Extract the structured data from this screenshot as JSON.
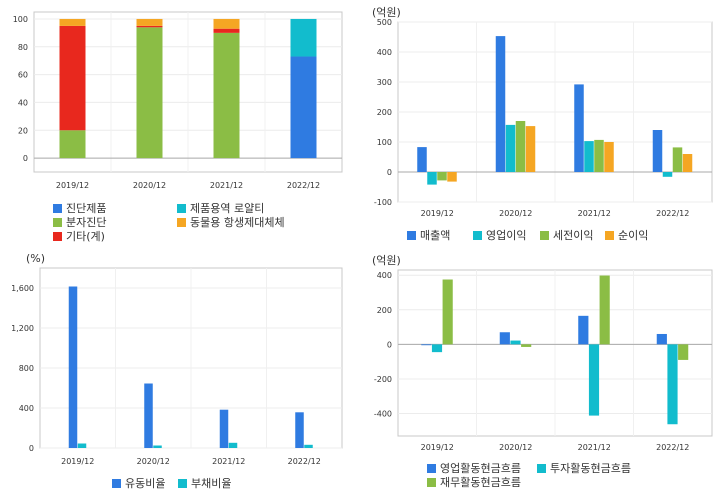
{
  "colors": {
    "blue": "#2f7be1",
    "cyan": "#12bccd",
    "green": "#8bbd45",
    "orange": "#f5a623",
    "red": "#e8281e"
  },
  "chart_data": [
    {
      "id": "c1",
      "type": "bar",
      "stacked": true,
      "categories": [
        "2019/12",
        "2020/12",
        "2021/12",
        "2022/12"
      ],
      "ylim": [
        -10,
        105
      ],
      "yticks": [
        0,
        20,
        40,
        60,
        80,
        100
      ],
      "ytick_labels": [
        "0",
        "20",
        "40",
        "60",
        "80",
        "100"
      ],
      "unit": "",
      "series": [
        {
          "name": "진단제품",
          "color": "blue",
          "values": [
            0,
            0,
            0,
            73
          ]
        },
        {
          "name": "분자진단",
          "color": "green",
          "values": [
            20,
            94,
            90,
            0
          ]
        },
        {
          "name": "기타(계)",
          "color": "red",
          "values": [
            75,
            1,
            3,
            0
          ]
        },
        {
          "name": "제품용역 로얄티",
          "color": "cyan",
          "values": [
            0,
            0,
            0,
            27
          ]
        },
        {
          "name": "동물용 항생제대체체",
          "color": "orange",
          "values": [
            5,
            5,
            7,
            0
          ]
        }
      ],
      "legend": [
        {
          "name": "진단제품",
          "color": "blue"
        },
        {
          "name": "제품용역 로얄티",
          "color": "cyan"
        },
        {
          "name": "분자진단",
          "color": "green"
        },
        {
          "name": "동물용 항생제대체체",
          "color": "orange"
        },
        {
          "name": "기타(계)",
          "color": "red"
        }
      ]
    },
    {
      "id": "c2",
      "type": "bar",
      "categories": [
        "2019/12",
        "2020/12",
        "2021/12",
        "2022/12"
      ],
      "ylim": [
        -100,
        500
      ],
      "yticks": [
        -100,
        0,
        100,
        200,
        300,
        400,
        500
      ],
      "ytick_labels": [
        "-100",
        "0",
        "100",
        "200",
        "300",
        "400",
        "500"
      ],
      "unit": "(억원)",
      "series": [
        {
          "name": "매출액",
          "color": "blue",
          "values": [
            83,
            453,
            292,
            140
          ]
        },
        {
          "name": "영업이익",
          "color": "cyan",
          "values": [
            -42,
            157,
            103,
            -16
          ]
        },
        {
          "name": "세전이익",
          "color": "green",
          "values": [
            -28,
            170,
            107,
            82
          ]
        },
        {
          "name": "순이익",
          "color": "orange",
          "values": [
            -32,
            153,
            100,
            60
          ]
        }
      ],
      "legend": [
        {
          "name": "매출액",
          "color": "blue"
        },
        {
          "name": "영업이익",
          "color": "cyan"
        },
        {
          "name": "세전이익",
          "color": "green"
        },
        {
          "name": "순이익",
          "color": "orange"
        }
      ]
    },
    {
      "id": "c3",
      "type": "bar",
      "categories": [
        "2019/12",
        "2020/12",
        "2021/12",
        "2022/12"
      ],
      "ylim": [
        0,
        1800
      ],
      "yticks": [
        0,
        400,
        800,
        1200,
        1600
      ],
      "ytick_labels": [
        "0",
        "400",
        "800",
        "1,200",
        "1,600"
      ],
      "unit": "(%)",
      "series": [
        {
          "name": "유동비율",
          "color": "blue",
          "values": [
            1615,
            645,
            383,
            357
          ]
        },
        {
          "name": "부채비율",
          "color": "cyan",
          "values": [
            45,
            25,
            52,
            32
          ]
        }
      ],
      "legend": [
        {
          "name": "유동비율",
          "color": "blue"
        },
        {
          "name": "부채비율",
          "color": "cyan"
        }
      ]
    },
    {
      "id": "c4",
      "type": "bar",
      "categories": [
        "2019/12",
        "2020/12",
        "2021/12",
        "2022/12"
      ],
      "ylim": [
        -530,
        430
      ],
      "yticks": [
        -400,
        -200,
        0,
        200,
        400
      ],
      "ytick_labels": [
        "-400",
        "-200",
        "0",
        "200",
        "400"
      ],
      "unit": "(억원)",
      "series": [
        {
          "name": "영업활동현금흐름",
          "color": "blue",
          "values": [
            -5,
            70,
            165,
            60
          ]
        },
        {
          "name": "투자활동현금흐름",
          "color": "cyan",
          "values": [
            -45,
            22,
            -412,
            -462
          ]
        },
        {
          "name": "재무활동현금흐름",
          "color": "green",
          "values": [
            375,
            -15,
            398,
            -90
          ]
        }
      ],
      "legend": [
        {
          "name": "영업활동현금흐름",
          "color": "blue"
        },
        {
          "name": "투자활동현금흐름",
          "color": "cyan"
        },
        {
          "name": "재무활동현금흐름",
          "color": "green"
        }
      ]
    }
  ]
}
